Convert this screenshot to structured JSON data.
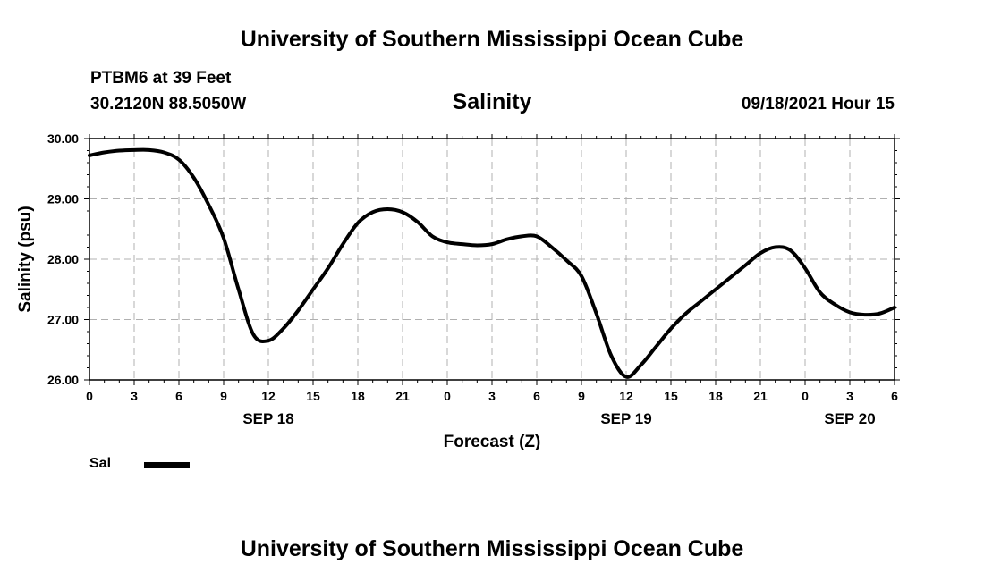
{
  "header": {
    "title": "University of Southern Mississippi Ocean Cube",
    "station": "PTBM6 at 39 Feet",
    "coordinates": "30.2120N  88.5050W",
    "date": "09/18/2021 Hour 15"
  },
  "footer": {
    "title": "University of Southern Mississippi Ocean Cube"
  },
  "legend": {
    "label": "Sal",
    "color": "#000000"
  },
  "chart_data": {
    "type": "line",
    "title": "Salinity",
    "xlabel": "Forecast (Z)",
    "ylabel": "Salinity (psu)",
    "ylim": [
      26.0,
      30.0
    ],
    "xlim": [
      0,
      54
    ],
    "y_ticks": [
      "26.00",
      "27.00",
      "28.00",
      "29.00",
      "30.00"
    ],
    "y_tick_values": [
      26,
      27,
      28,
      29,
      30
    ],
    "x_tick_labels": [
      "0",
      "3",
      "6",
      "9",
      "12",
      "15",
      "18",
      "21",
      "0",
      "3",
      "6",
      "9",
      "12",
      "15",
      "18",
      "21",
      "0",
      "3",
      "6"
    ],
    "x_tick_hours": [
      0,
      3,
      6,
      9,
      12,
      15,
      18,
      21,
      24,
      27,
      30,
      33,
      36,
      39,
      42,
      45,
      48,
      51,
      54
    ],
    "day_labels": [
      {
        "label": "SEP 18",
        "hour": 12
      },
      {
        "label": "SEP 19",
        "hour": 36
      },
      {
        "label": "SEP 20",
        "hour": 51
      }
    ],
    "grid": true,
    "series": [
      {
        "name": "Sal",
        "color": "#000000",
        "x": [
          0,
          1,
          2,
          3,
          4,
          5,
          6,
          7,
          8,
          9,
          10,
          11,
          12,
          13,
          14,
          15,
          16,
          17,
          18,
          19,
          20,
          21,
          22,
          23,
          24,
          25,
          26,
          27,
          28,
          29,
          30,
          31,
          32,
          33,
          34,
          35,
          36,
          37,
          38,
          39,
          40,
          41,
          42,
          43,
          44,
          45,
          46,
          47,
          48,
          49,
          50,
          51,
          52,
          53,
          54
        ],
        "values": [
          29.72,
          29.77,
          29.8,
          29.81,
          29.81,
          29.77,
          29.65,
          29.35,
          28.9,
          28.35,
          27.5,
          26.75,
          26.65,
          26.85,
          27.15,
          27.5,
          27.85,
          28.25,
          28.6,
          28.78,
          28.83,
          28.78,
          28.62,
          28.38,
          28.28,
          28.25,
          28.23,
          28.25,
          28.33,
          28.38,
          28.38,
          28.2,
          27.98,
          27.72,
          27.1,
          26.4,
          26.05,
          26.25,
          26.55,
          26.85,
          27.1,
          27.3,
          27.5,
          27.7,
          27.9,
          28.1,
          28.2,
          28.15,
          27.85,
          27.45,
          27.25,
          27.12,
          27.08,
          27.1,
          27.2
        ]
      }
    ]
  }
}
